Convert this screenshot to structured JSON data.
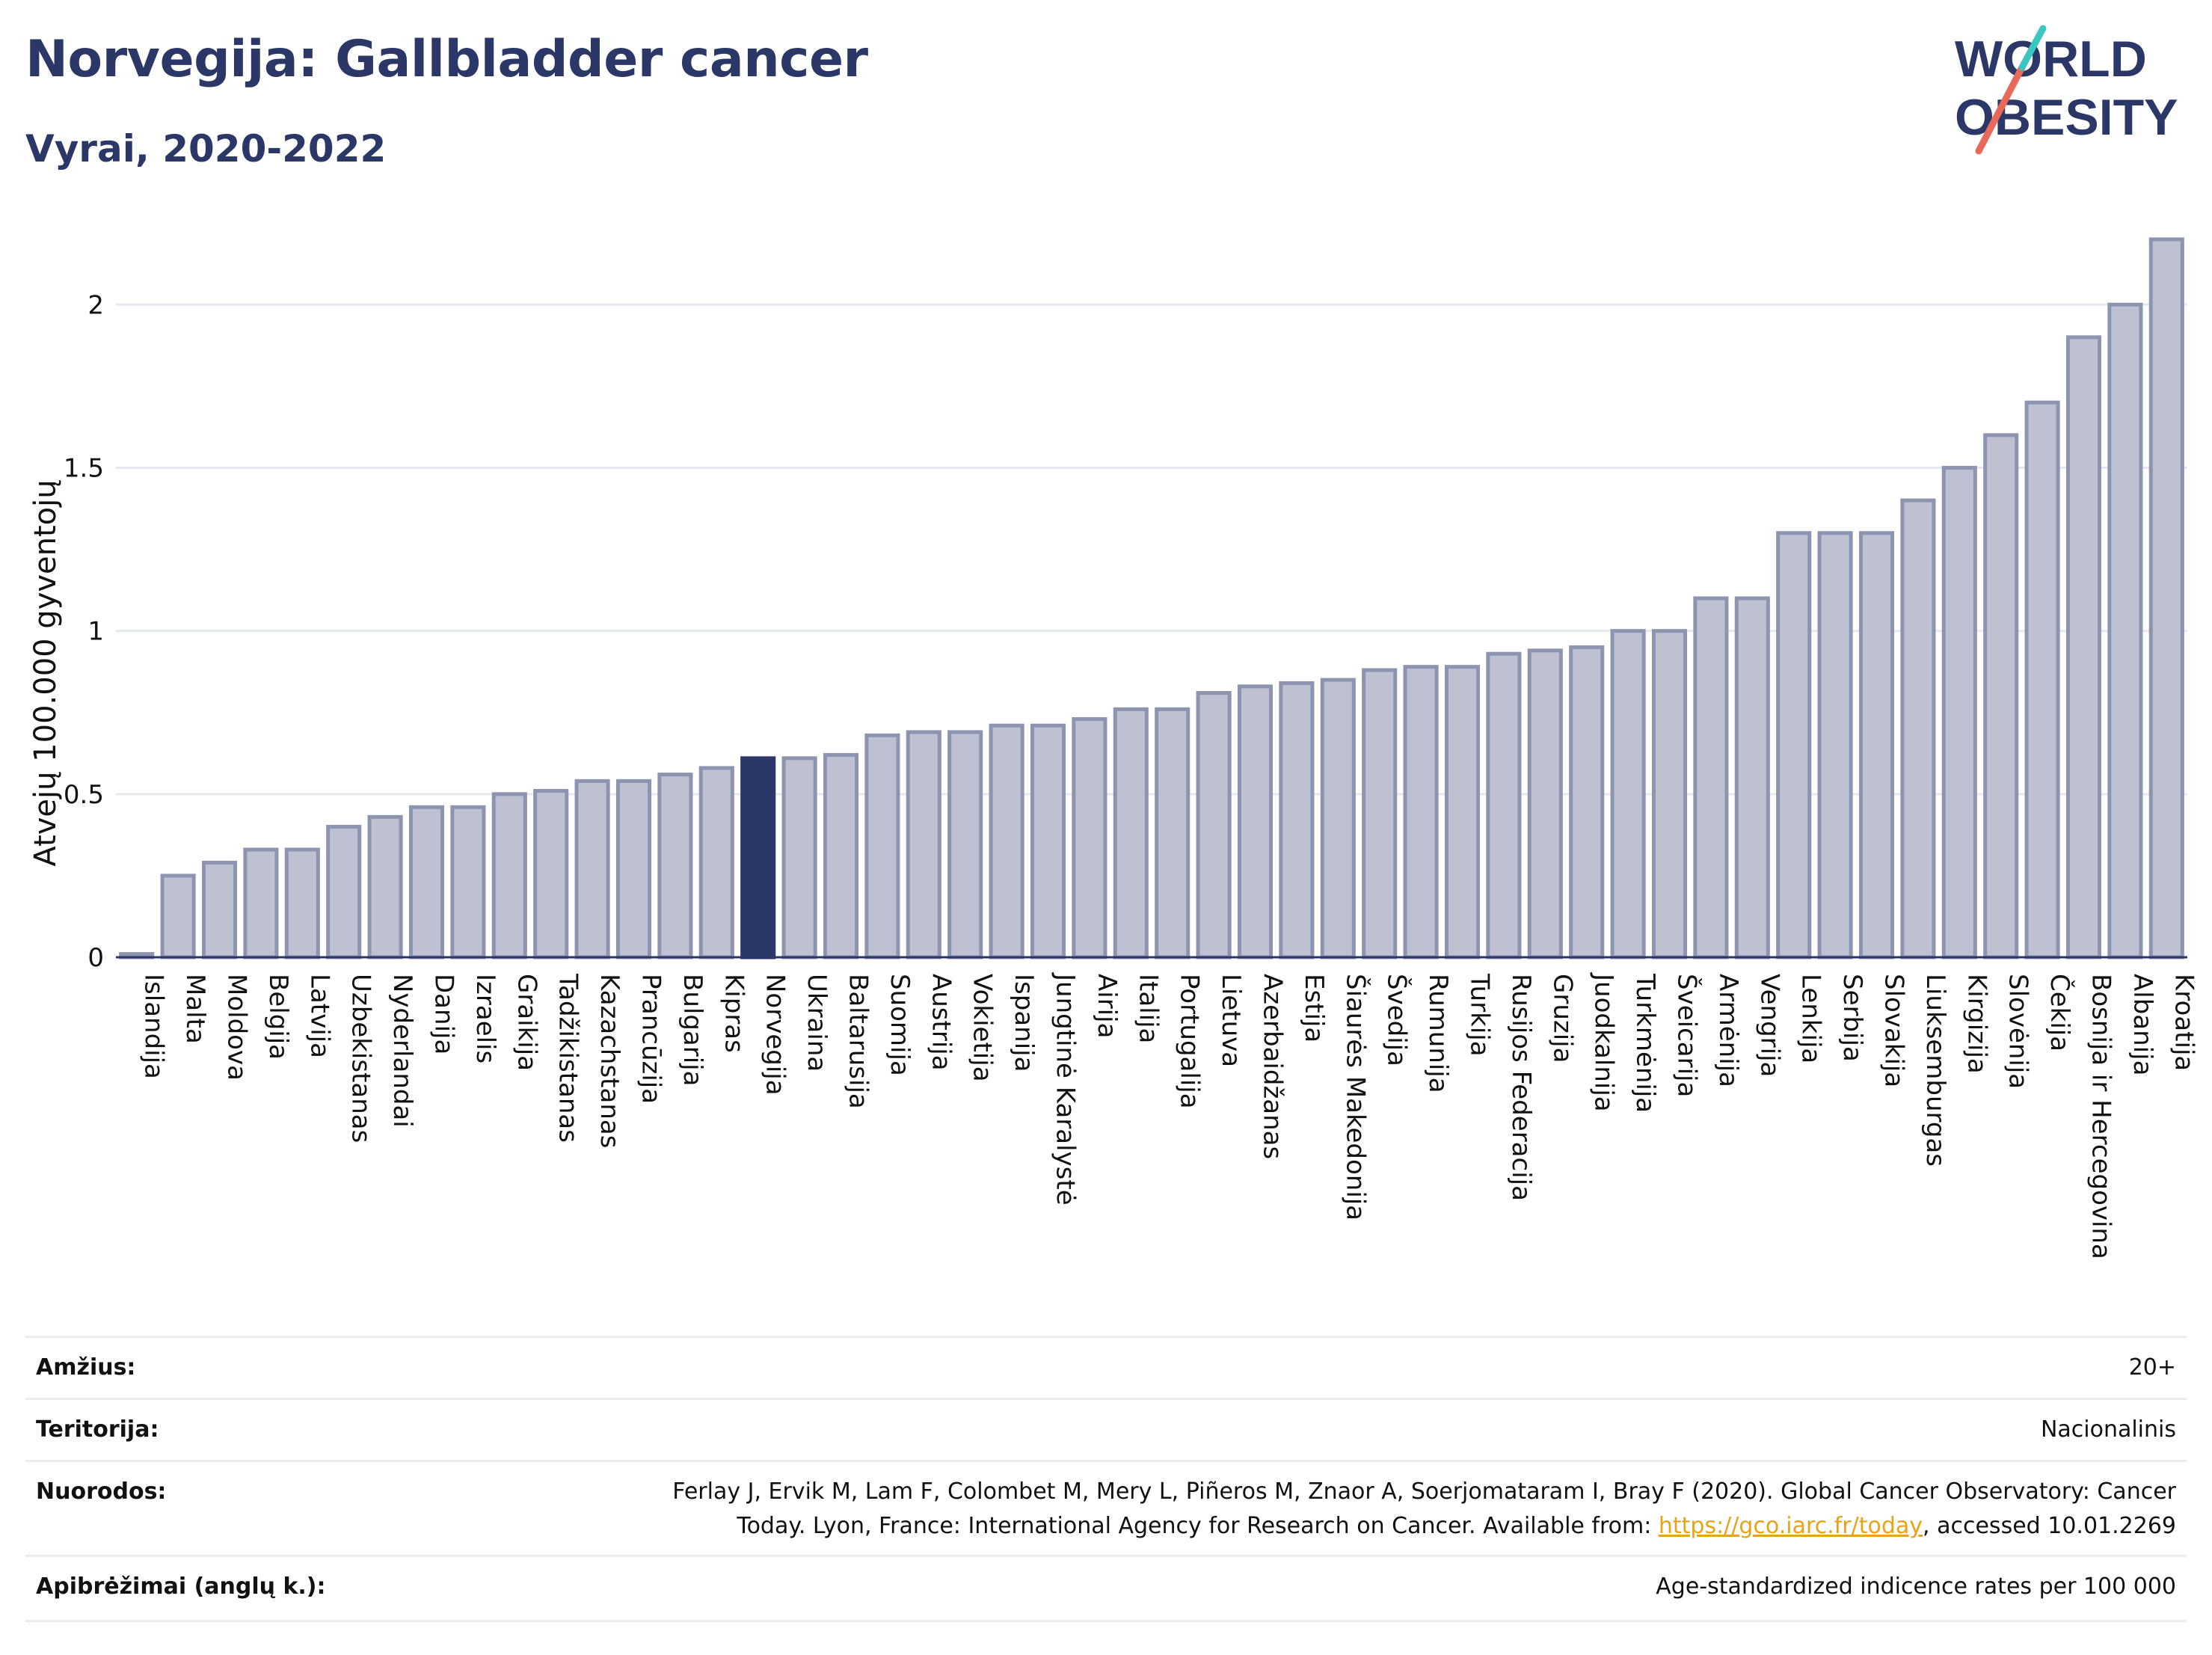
{
  "header": {
    "title": "Norvegija: Gallbladder cancer",
    "subtitle": "Vyrai, 2020-2022"
  },
  "logo": {
    "line1": "WORLD",
    "line2": "OBESITY",
    "accent_colors": [
      "#e8685a",
      "#3cc6c0"
    ]
  },
  "chart_data": {
    "type": "bar",
    "ylabel": "Atvejų 100.000 gyventojų",
    "ylim": [
      0,
      2.2
    ],
    "yticks": [
      0,
      0.5,
      1,
      1.5,
      2
    ],
    "ytick_labels": [
      "0",
      "0.5",
      "1",
      "1.5",
      "2"
    ],
    "grid": true,
    "highlight_category": "Norvegija",
    "colors": {
      "bar": "#bdc1d1",
      "bar_edge": "#8d94b0",
      "highlight": "#2b3766"
    },
    "categories": [
      "Islandija",
      "Malta",
      "Moldova",
      "Belgija",
      "Latvija",
      "Uzbekistanas",
      "Nyderlandai",
      "Danija",
      "Izraelis",
      "Graikija",
      "Tadžikistanas",
      "Kazachstanas",
      "Prancūzija",
      "Bulgarija",
      "Kipras",
      "Norvegija",
      "Ukraina",
      "Baltarusija",
      "Suomija",
      "Austrija",
      "Vokietija",
      "Ispanija",
      "Jungtinė Karalystė",
      "Airija",
      "Italija",
      "Portugalija",
      "Lietuva",
      "Azerbaidžanas",
      "Estija",
      "Šiaurės Makedonija",
      "Švedija",
      "Rumunija",
      "Turkija",
      "Rusijos Federacija",
      "Gruzija",
      "Juodkalnija",
      "Turkmėnija",
      "Šveicarija",
      "Armėnija",
      "Vengrija",
      "Lenkija",
      "Serbija",
      "Slovakija",
      "Liuksemburgas",
      "Kirgizija",
      "Slovėnija",
      "Čekija",
      "Bosnija ir Hercegovina",
      "Albanija",
      "Kroatija"
    ],
    "values": [
      0.01,
      0.25,
      0.29,
      0.33,
      0.33,
      0.4,
      0.43,
      0.46,
      0.46,
      0.5,
      0.51,
      0.54,
      0.54,
      0.56,
      0.58,
      0.61,
      0.61,
      0.62,
      0.68,
      0.69,
      0.69,
      0.71,
      0.71,
      0.73,
      0.76,
      0.76,
      0.81,
      0.83,
      0.84,
      0.85,
      0.88,
      0.89,
      0.89,
      0.93,
      0.94,
      0.95,
      1.0,
      1.0,
      1.1,
      1.1,
      1.3,
      1.3,
      1.3,
      1.4,
      1.5,
      1.6,
      1.7,
      1.9,
      2.0,
      2.2
    ]
  },
  "meta": {
    "age_label": "Amžius:",
    "age_value": "20+",
    "territory_label": "Teritorija:",
    "territory_value": "Nacionalinis",
    "refs_label": "Nuorodos:",
    "refs_line1": "Ferlay J, Ervik M, Lam F, Colombet M, Mery L, Piñeros M, Znaor A, Soerjomataram I, Bray F (2020). Global Cancer Observatory: Cancer",
    "refs_line2_pre": "Today. Lyon, France: International Agency for Research on Cancer. Available from: ",
    "refs_link": "https://gco.iarc.fr/today",
    "refs_line2_post": ", accessed 10.01.2269",
    "defs_label": "Apibrėžimai (anglų k.):",
    "defs_value": "Age-standardized indicence rates per 100 000"
  }
}
